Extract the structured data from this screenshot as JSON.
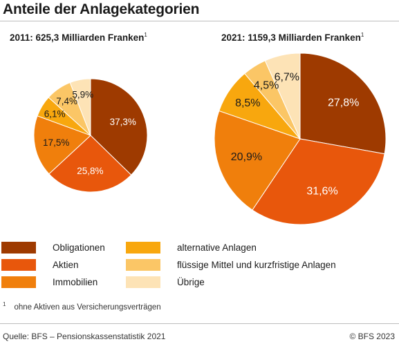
{
  "title": "Anteile der Anlagekategorien",
  "colors": {
    "Obligationen": "#9e3a00",
    "Aktien": "#e8570c",
    "Immobilien": "#f07f0c",
    "alternative Anlagen": "#f8a70e",
    "flüssige Mittel und kurzfristige Anlagen": "#fbc666",
    "Übrige": "#fde3b6"
  },
  "chart_data": [
    {
      "type": "pie",
      "title": "2011: 625,3 Milliarden Franken",
      "title_note": "1",
      "categories": [
        "Obligationen",
        "Aktien",
        "Immobilien",
        "alternative Anlagen",
        "flüssige Mittel und kurzfristige Anlagen",
        "Übrige"
      ],
      "values": [
        37.3,
        25.8,
        17.5,
        6.1,
        7.4,
        5.9
      ],
      "labels": [
        "37,3%",
        "25,8%",
        "17,5%",
        "6,1%",
        "7,4%",
        "5,9%"
      ]
    },
    {
      "type": "pie",
      "title": "2021: 1159,3 Milliarden Franken",
      "title_note": "1",
      "categories": [
        "Obligationen",
        "Aktien",
        "Immobilien",
        "alternative Anlagen",
        "flüssige Mittel und kurzfristige Anlagen",
        "Übrige"
      ],
      "values": [
        27.8,
        31.6,
        20.9,
        8.5,
        4.5,
        6.7
      ],
      "labels": [
        "27,8%",
        "31,6%",
        "20,9%",
        "8,5%",
        "4,5%",
        "6,7%"
      ]
    }
  ],
  "legend": [
    {
      "label": "Obligationen",
      "color": "#9e3a00"
    },
    {
      "label": "Aktien",
      "color": "#e8570c"
    },
    {
      "label": "Immobilien",
      "color": "#f07f0c"
    },
    {
      "label": "alternative Anlagen",
      "color": "#f8a70e"
    },
    {
      "label": "flüssige Mittel und kurzfristige Anlagen",
      "color": "#fbc666"
    },
    {
      "label": "Übrige",
      "color": "#fde3b6"
    }
  ],
  "footnote": {
    "mark": "1",
    "text": "ohne Aktiven aus Versicherungsverträgen"
  },
  "source": "Quelle: BFS – Pensionskassenstatistik 2021",
  "copyright": "© BFS 2023"
}
